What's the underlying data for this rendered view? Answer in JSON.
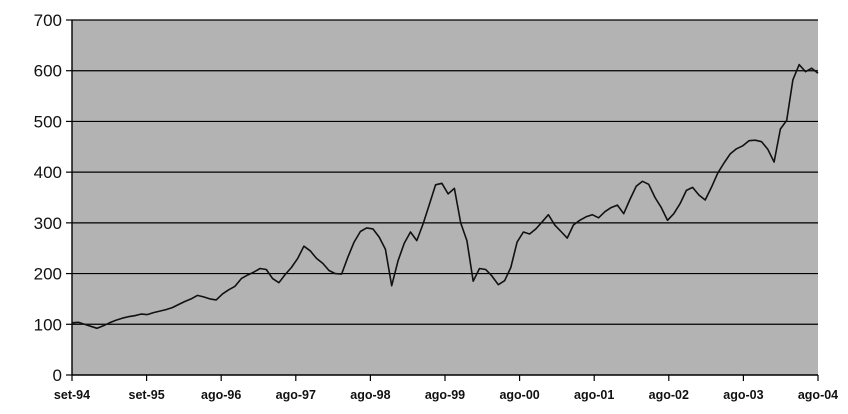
{
  "chart_data": {
    "type": "line",
    "title": "",
    "xlabel": "",
    "ylabel": "",
    "ylim": [
      0,
      700
    ],
    "y_ticks": [
      "0",
      "100",
      "200",
      "300",
      "400",
      "500",
      "600",
      "700"
    ],
    "x_ticks": [
      "set-94",
      "set-95",
      "ago-96",
      "ago-97",
      "ago-98",
      "ago-99",
      "ago-00",
      "ago-01",
      "ago-02",
      "ago-03",
      "ago-04"
    ],
    "grid": true,
    "legend": "none",
    "colors": {
      "plot_background": "#b3b3b3",
      "line": "#111111",
      "grid": "#000000"
    },
    "series": [
      {
        "x": [
          "1994-09",
          "1994-10",
          "1994-11",
          "1994-12",
          "1995-01",
          "1995-02",
          "1995-03",
          "1995-04",
          "1995-05",
          "1995-06",
          "1995-07",
          "1995-08",
          "1995-09",
          "1995-10",
          "1995-11",
          "1995-12",
          "1996-01",
          "1996-02",
          "1996-03",
          "1996-04",
          "1996-05",
          "1996-06",
          "1996-07",
          "1996-08",
          "1996-09",
          "1996-10",
          "1996-11",
          "1996-12",
          "1997-01",
          "1997-02",
          "1997-03",
          "1997-04",
          "1997-05",
          "1997-06",
          "1997-07",
          "1997-08",
          "1997-09",
          "1997-10",
          "1997-11",
          "1997-12",
          "1998-01",
          "1998-02",
          "1998-03",
          "1998-04",
          "1998-05",
          "1998-06",
          "1998-07",
          "1998-08",
          "1998-09",
          "1998-10",
          "1998-11",
          "1998-12",
          "1999-01",
          "1999-02",
          "1999-03",
          "1999-04",
          "1999-05",
          "1999-06",
          "1999-07",
          "1999-08",
          "1999-09",
          "1999-10",
          "1999-11",
          "1999-12",
          "2000-01",
          "2000-02",
          "2000-03",
          "2000-04",
          "2000-05",
          "2000-06",
          "2000-07",
          "2000-08",
          "2000-09",
          "2000-10",
          "2000-11",
          "2000-12",
          "2001-01",
          "2001-02",
          "2001-03",
          "2001-04",
          "2001-05",
          "2001-06",
          "2001-07",
          "2001-08",
          "2001-09",
          "2001-10",
          "2001-11",
          "2001-12",
          "2002-01",
          "2002-02",
          "2002-03",
          "2002-04",
          "2002-05",
          "2002-06",
          "2002-07",
          "2002-08",
          "2002-09",
          "2002-10",
          "2002-11",
          "2002-12",
          "2003-01",
          "2003-02",
          "2003-03",
          "2003-04",
          "2003-05",
          "2003-06",
          "2003-07",
          "2003-08",
          "2003-09",
          "2003-10",
          "2003-11",
          "2003-12",
          "2004-01",
          "2004-02",
          "2004-03",
          "2004-04",
          "2004-05",
          "2004-06",
          "2004-07",
          "2004-08"
        ],
        "values": [
          103,
          104,
          100,
          96,
          92,
          97,
          103,
          108,
          112,
          115,
          117,
          120,
          119,
          123,
          126,
          129,
          133,
          139,
          145,
          150,
          157,
          154,
          150,
          148,
          160,
          168,
          175,
          190,
          197,
          203,
          210,
          208,
          190,
          182,
          198,
          212,
          230,
          254,
          245,
          230,
          220,
          206,
          200,
          199,
          232,
          262,
          283,
          290,
          288,
          272,
          248,
          176,
          225,
          260,
          282,
          265,
          298,
          336,
          375,
          378,
          357,
          368,
          300,
          265,
          185,
          210,
          208,
          195,
          178,
          186,
          212,
          262,
          282,
          278,
          288,
          302,
          316,
          296,
          283,
          270,
          296,
          305,
          312,
          316,
          310,
          322,
          330,
          335,
          318,
          346,
          372,
          382,
          376,
          350,
          330,
          305,
          318,
          338,
          364,
          370,
          355,
          345,
          370,
          398,
          418,
          436,
          446,
          452,
          462,
          463,
          460,
          445,
          420,
          485,
          502,
          582,
          612,
          598,
          605,
          595
        ]
      }
    ]
  }
}
